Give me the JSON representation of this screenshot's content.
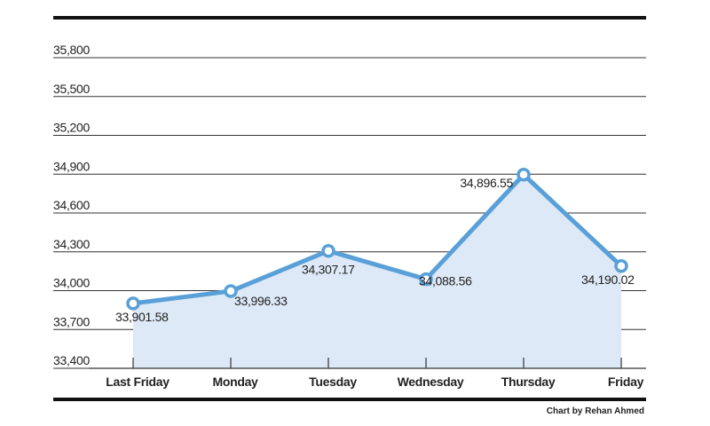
{
  "chart_data": {
    "type": "area",
    "categories": [
      "Last Friday",
      "Monday",
      "Tuesday",
      "Wednesday",
      "Thursday",
      "Friday"
    ],
    "values": [
      33901.58,
      33996.33,
      34307.17,
      34088.56,
      34896.55,
      34190.02
    ],
    "data_labels": [
      "33,901.58",
      "33,996.33",
      "34,307.17",
      "34,088.56",
      "34,896.55",
      "34,190.02"
    ],
    "y_ticks": [
      33400,
      33700,
      34000,
      34300,
      34600,
      34900,
      35200,
      35500,
      35800
    ],
    "y_tick_labels": [
      "33,400",
      "33,700",
      "34,000",
      "34,300",
      "34,600",
      "34,900",
      "35,200",
      "35,500",
      "35,800"
    ],
    "ylim": [
      33400,
      35800
    ],
    "title": "",
    "xlabel": "",
    "ylabel": "",
    "grid": true,
    "line_color": "#5aa0d8",
    "fill_color": "#dde9f6",
    "credit": "Chart by Rehan Ahmed"
  }
}
